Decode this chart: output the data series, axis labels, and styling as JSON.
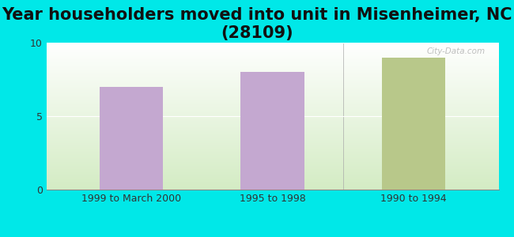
{
  "title": "Year householders moved into unit in Misenheimer, NC (28109)",
  "categories": [
    "1999 to March 2000",
    "1995 to 1998",
    "1990 to 1994"
  ],
  "white_values": [
    7.0,
    8.0,
    null
  ],
  "black_values": [
    null,
    null,
    9.0
  ],
  "white_color": "#c4a8d0",
  "black_color": "#b8c88a",
  "ylim": [
    0,
    10
  ],
  "yticks": [
    0,
    5,
    10
  ],
  "background_outer": "#00e8e8",
  "title_fontsize": 15,
  "tick_fontsize": 9,
  "legend_fontsize": 10,
  "bar_width": 0.45,
  "watermark": "City-Data.com"
}
